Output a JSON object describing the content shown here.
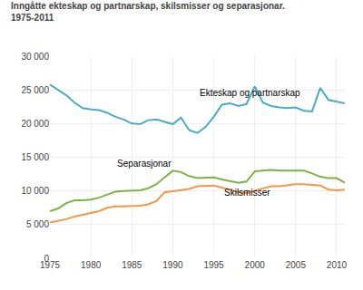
{
  "chart_data": {
    "type": "line",
    "title": "Inngåtte ekteskap og partnarskap, skilsmisser og separasjonar.",
    "subtitle": "1975-2011",
    "x": [
      1975,
      1976,
      1977,
      1978,
      1979,
      1980,
      1981,
      1982,
      1983,
      1984,
      1985,
      1986,
      1987,
      1988,
      1989,
      1990,
      1991,
      1992,
      1993,
      1994,
      1995,
      1996,
      1997,
      1998,
      1999,
      2000,
      2001,
      2002,
      2003,
      2004,
      2005,
      2006,
      2007,
      2008,
      2009,
      2010,
      2011
    ],
    "series": [
      {
        "name": "Ekteskap og partnarskap",
        "color": "#4BACC6",
        "values": [
          25800,
          25000,
          24200,
          23100,
          22300,
          22100,
          22000,
          21600,
          21000,
          20600,
          20000,
          19900,
          20500,
          20600,
          20200,
          19900,
          20900,
          19000,
          18600,
          19500,
          21000,
          22800,
          23000,
          22600,
          22900,
          25500,
          23100,
          22600,
          22400,
          22300,
          22400,
          21900,
          21800,
          25300,
          23500,
          23200,
          23000
        ]
      },
      {
        "name": "Separasjonar",
        "color": "#7CB342",
        "values": [
          7000,
          7400,
          8200,
          8600,
          8600,
          8700,
          9000,
          9500,
          9900,
          10000,
          10000,
          10100,
          10400,
          11000,
          12000,
          13000,
          12800,
          12200,
          11900,
          11900,
          12000,
          11700,
          11500,
          11200,
          11400,
          12900,
          13000,
          13100,
          13000,
          13000,
          12900,
          13000,
          12600,
          12100,
          11900,
          11900,
          11200
        ]
      },
      {
        "name": "Skilsmisser",
        "color": "#F79646",
        "values": [
          5300,
          5500,
          5800,
          6200,
          6500,
          6700,
          7000,
          7500,
          7700,
          7700,
          7700,
          7800,
          8000,
          8500,
          9800,
          10000,
          10200,
          10300,
          10700,
          10800,
          10800,
          10500,
          10200,
          9800,
          9700,
          10000,
          10400,
          10700,
          10700,
          10900,
          11000,
          11000,
          10900,
          10800,
          10200,
          10100,
          10200
        ]
      }
    ],
    "annotations": [
      {
        "text": "Ekteskap og partnarskap",
        "x": 1993,
        "y": 23600
      },
      {
        "text": "Separasjonar",
        "x": 1983,
        "y": 13100
      },
      {
        "text": "Skilsmisser",
        "x": 1996,
        "y": 8700
      }
    ],
    "xlim": [
      1975,
      2011
    ],
    "xticks": [
      1975,
      1980,
      1985,
      1990,
      1995,
      2000,
      2005,
      2010
    ],
    "ylim": [
      0,
      30000
    ],
    "yticks": [
      0,
      {
        "value": 5000,
        "label": "5 000"
      },
      {
        "value": 10000,
        "label": "10 000"
      },
      {
        "value": 15000,
        "label": "15 000"
      },
      {
        "value": 20000,
        "label": "20 000"
      },
      {
        "value": 25000,
        "label": "25 000"
      },
      {
        "value": 30000,
        "label": "30 000"
      }
    ],
    "grid": true
  }
}
